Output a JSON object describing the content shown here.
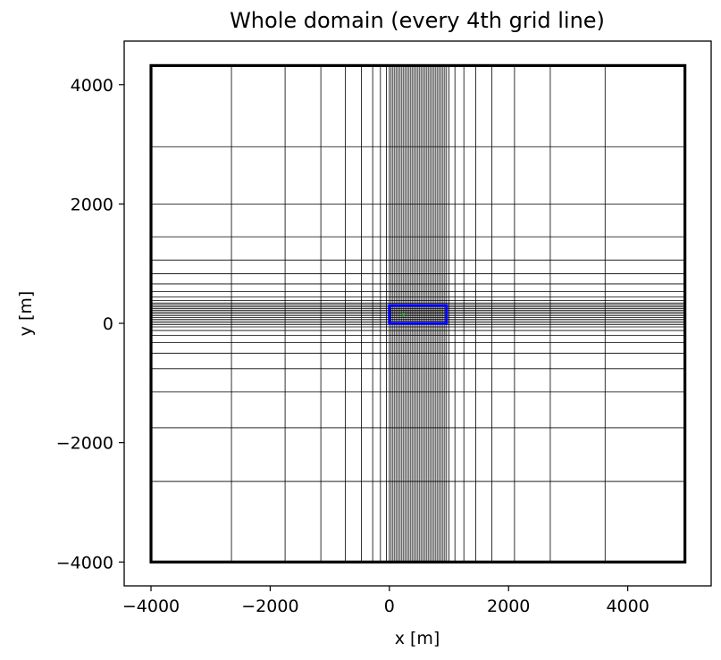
{
  "chart_data": {
    "type": "line",
    "title": "Whole domain (every 4th grid line)",
    "xlabel": "x [m]",
    "ylabel": "y [m]",
    "xlim": [
      -4450,
      5400
    ],
    "ylim": [
      -4400,
      4730
    ],
    "xticks": [
      -4000,
      -2000,
      0,
      2000,
      4000
    ],
    "yticks": [
      -4000,
      -2000,
      0,
      2000,
      4000
    ],
    "xtick_labels": [
      "−4000",
      "−2000",
      "0",
      "2000",
      "4000"
    ],
    "ytick_labels": [
      "−4000",
      "−2000",
      "0",
      "2000",
      "4000"
    ],
    "grid": false,
    "domain_bounds": {
      "x": [
        -4000,
        4960
      ],
      "y": [
        -4000,
        4320
      ]
    },
    "grid_lines_x": [
      -2650,
      -1750,
      -1150,
      -740,
      -470,
      -280,
      -150,
      -50,
      0,
      30,
      60,
      90,
      120,
      150,
      180,
      210,
      240,
      270,
      300,
      330,
      360,
      390,
      420,
      450,
      480,
      510,
      540,
      570,
      600,
      630,
      660,
      690,
      720,
      750,
      780,
      810,
      840,
      870,
      900,
      930,
      960,
      1000,
      1100,
      1250,
      1450,
      1720,
      2100,
      2700,
      3620
    ],
    "grid_lines_y": [
      -2650,
      -1750,
      -1150,
      -760,
      -500,
      -320,
      -200,
      -120,
      -60,
      -20,
      10,
      40,
      70,
      100,
      130,
      160,
      190,
      220,
      250,
      280,
      310,
      340,
      380,
      440,
      530,
      660,
      830,
      1060,
      1450,
      2000,
      2960
    ],
    "inner_box": {
      "x": [
        0,
        960
      ],
      "y": [
        0,
        300
      ],
      "color": "#0000ff"
    },
    "marker": {
      "x": [
        220,
        240
      ],
      "y": [
        120,
        160
      ],
      "color": "#00aa00"
    },
    "colors": {
      "grid": "#000000",
      "frame": "#000000",
      "inner_box": "#0000ff",
      "marker": "#00aa00"
    }
  }
}
